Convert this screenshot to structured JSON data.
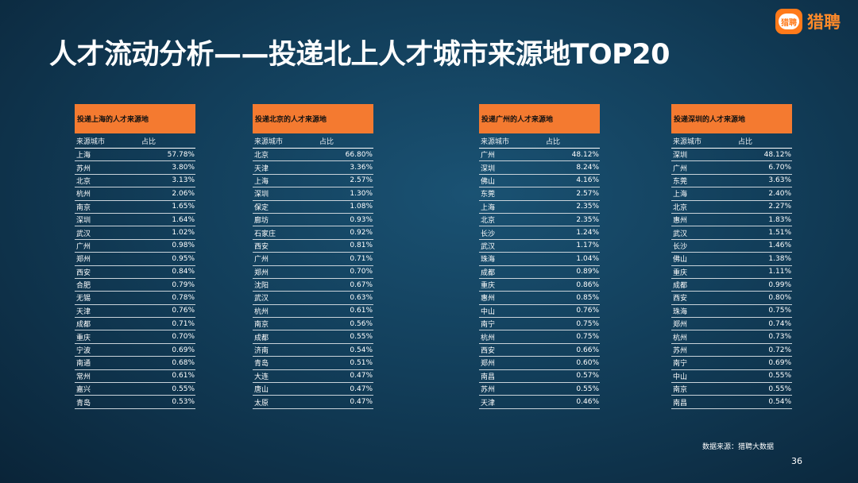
{
  "title": "人才流动分析——投递北上人才城市来源地TOP20",
  "logo": {
    "badge_text": "猎聘",
    "text": "猎聘",
    "color": "#ff7a1a"
  },
  "col_headers": {
    "city": "来源城市",
    "share": "占比"
  },
  "panels": [
    {
      "header": "投递上海的人才来源地",
      "rows": [
        {
          "city": "上海",
          "pct": "57.78%"
        },
        {
          "city": "苏州",
          "pct": "3.80%"
        },
        {
          "city": "北京",
          "pct": "3.13%"
        },
        {
          "city": "杭州",
          "pct": "2.06%"
        },
        {
          "city": "南京",
          "pct": "1.65%"
        },
        {
          "city": "深圳",
          "pct": "1.64%"
        },
        {
          "city": "武汉",
          "pct": "1.02%"
        },
        {
          "city": "广州",
          "pct": "0.98%"
        },
        {
          "city": "郑州",
          "pct": "0.95%"
        },
        {
          "city": "西安",
          "pct": "0.84%"
        },
        {
          "city": "合肥",
          "pct": "0.79%"
        },
        {
          "city": "无锡",
          "pct": "0.78%"
        },
        {
          "city": "天津",
          "pct": "0.76%"
        },
        {
          "city": "成都",
          "pct": "0.71%"
        },
        {
          "city": "重庆",
          "pct": "0.70%"
        },
        {
          "city": "宁波",
          "pct": "0.69%"
        },
        {
          "city": "南通",
          "pct": "0.68%"
        },
        {
          "city": "常州",
          "pct": "0.61%"
        },
        {
          "city": "嘉兴",
          "pct": "0.55%"
        },
        {
          "city": "青岛",
          "pct": "0.53%"
        }
      ]
    },
    {
      "header": "投递北京的人才来源地",
      "rows": [
        {
          "city": "北京",
          "pct": "66.80%"
        },
        {
          "city": "天津",
          "pct": "3.36%"
        },
        {
          "city": "上海",
          "pct": "2.57%"
        },
        {
          "city": "深圳",
          "pct": "1.30%"
        },
        {
          "city": "保定",
          "pct": "1.08%"
        },
        {
          "city": "廊坊",
          "pct": "0.93%"
        },
        {
          "city": "石家庄",
          "pct": "0.92%"
        },
        {
          "city": "西安",
          "pct": "0.81%"
        },
        {
          "city": "广州",
          "pct": "0.71%"
        },
        {
          "city": "郑州",
          "pct": "0.70%"
        },
        {
          "city": "沈阳",
          "pct": "0.67%"
        },
        {
          "city": "武汉",
          "pct": "0.63%"
        },
        {
          "city": "杭州",
          "pct": "0.61%"
        },
        {
          "city": "南京",
          "pct": "0.56%"
        },
        {
          "city": "成都",
          "pct": "0.55%"
        },
        {
          "city": "济南",
          "pct": "0.54%"
        },
        {
          "city": "青岛",
          "pct": "0.51%"
        },
        {
          "city": "大连",
          "pct": "0.47%"
        },
        {
          "city": "唐山",
          "pct": "0.47%"
        },
        {
          "city": "太原",
          "pct": "0.47%"
        }
      ]
    },
    {
      "header": "投递广州的人才来源地",
      "rows": [
        {
          "city": "广州",
          "pct": "48.12%"
        },
        {
          "city": "深圳",
          "pct": "8.24%"
        },
        {
          "city": "佛山",
          "pct": "4.16%"
        },
        {
          "city": "东莞",
          "pct": "2.57%"
        },
        {
          "city": "上海",
          "pct": "2.35%"
        },
        {
          "city": "北京",
          "pct": "2.35%"
        },
        {
          "city": "长沙",
          "pct": "1.24%"
        },
        {
          "city": "武汉",
          "pct": "1.17%"
        },
        {
          "city": "珠海",
          "pct": "1.04%"
        },
        {
          "city": "成都",
          "pct": "0.89%"
        },
        {
          "city": "重庆",
          "pct": "0.86%"
        },
        {
          "city": "惠州",
          "pct": "0.85%"
        },
        {
          "city": "中山",
          "pct": "0.76%"
        },
        {
          "city": "南宁",
          "pct": "0.75%"
        },
        {
          "city": "杭州",
          "pct": "0.75%"
        },
        {
          "city": "西安",
          "pct": "0.66%"
        },
        {
          "city": "郑州",
          "pct": "0.60%"
        },
        {
          "city": "南昌",
          "pct": "0.57%"
        },
        {
          "city": "苏州",
          "pct": "0.55%"
        },
        {
          "city": "天津",
          "pct": "0.46%"
        }
      ]
    },
    {
      "header": "投递深圳的人才来源地",
      "rows": [
        {
          "city": "深圳",
          "pct": "48.12%"
        },
        {
          "city": "广州",
          "pct": "6.70%"
        },
        {
          "city": "东莞",
          "pct": "3.63%"
        },
        {
          "city": "上海",
          "pct": "2.40%"
        },
        {
          "city": "北京",
          "pct": "2.27%"
        },
        {
          "city": "惠州",
          "pct": "1.83%"
        },
        {
          "city": "武汉",
          "pct": "1.51%"
        },
        {
          "city": "长沙",
          "pct": "1.46%"
        },
        {
          "city": "佛山",
          "pct": "1.38%"
        },
        {
          "city": "重庆",
          "pct": "1.11%"
        },
        {
          "city": "成都",
          "pct": "0.99%"
        },
        {
          "city": "西安",
          "pct": "0.80%"
        },
        {
          "city": "珠海",
          "pct": "0.75%"
        },
        {
          "city": "郑州",
          "pct": "0.74%"
        },
        {
          "city": "杭州",
          "pct": "0.73%"
        },
        {
          "city": "苏州",
          "pct": "0.72%"
        },
        {
          "city": "南宁",
          "pct": "0.69%"
        },
        {
          "city": "中山",
          "pct": "0.55%"
        },
        {
          "city": "南京",
          "pct": "0.55%"
        },
        {
          "city": "南昌",
          "pct": "0.54%"
        }
      ]
    }
  ],
  "source": "数据来源：猎聘大数据",
  "page_number": "36"
}
